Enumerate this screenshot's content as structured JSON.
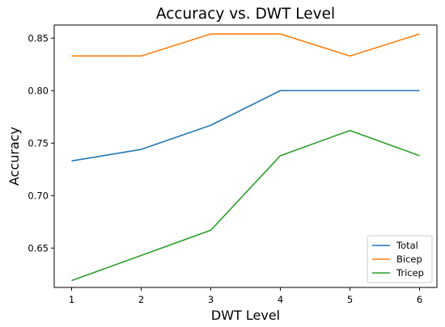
{
  "chart_data": {
    "type": "line",
    "title": "Accuracy vs. DWT Level",
    "xlabel": "DWT Level",
    "ylabel": "Accuracy",
    "x": [
      1,
      2,
      3,
      4,
      5,
      6
    ],
    "xticks": [
      "1",
      "2",
      "3",
      "4",
      "5",
      "6"
    ],
    "yticks": [
      "0.65",
      "0.70",
      "0.75",
      "0.80",
      "0.85"
    ],
    "ylim": [
      0.6125,
      0.8625
    ],
    "xlim": [
      0.75,
      6.25
    ],
    "grid": false,
    "legend_position": "lower-right",
    "series": [
      {
        "name": "Total",
        "color": "#1f77b4",
        "values": [
          0.733,
          0.744,
          0.767,
          0.8,
          0.8,
          0.8
        ]
      },
      {
        "name": "Bicep",
        "color": "#ff7f0e",
        "values": [
          0.833,
          0.833,
          0.854,
          0.854,
          0.833,
          0.854
        ]
      },
      {
        "name": "Tricep",
        "color": "#2ca02c",
        "values": [
          0.619,
          0.643,
          0.667,
          0.738,
          0.762,
          0.738
        ]
      }
    ]
  }
}
